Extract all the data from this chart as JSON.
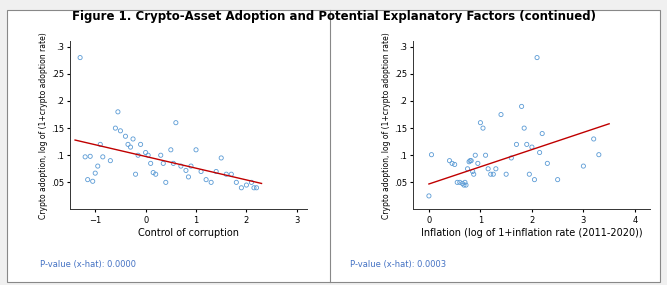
{
  "title": "Figure 1. Crypto-Asset Adoption and Potential Explanatory Factors (continued)",
  "title_fontsize": 8.5,
  "title_fontweight": "bold",
  "background_color": "#f0f0f0",
  "panel_bg": "#ffffff",
  "scatter_color": "#5b9bd5",
  "line_color": "#c00000",
  "marker_size": 9,
  "marker_linewidth": 0.6,
  "ylabel": "Crypto adoption, log of (1+crypto adoption rate)",
  "ylabel_fontsize": 5.5,
  "tick_fontsize": 6,
  "outer_border_color": "#888888",
  "plot1": {
    "xlabel": "Control of corruption",
    "xlabel_fontsize": 7,
    "pvalue_text": "P-value (x-hat): 0.0000",
    "pvalue_fontsize": 6,
    "pvalue_color": "#4472c4",
    "xlim": [
      -1.5,
      3.2
    ],
    "ylim": [
      0.0,
      0.31
    ],
    "xticks": [
      -1,
      0,
      1,
      2,
      3
    ],
    "yticks": [
      0.05,
      0.1,
      0.15,
      0.2,
      0.25,
      0.3
    ],
    "ytick_labels": [
      ".05",
      ".1",
      ".15",
      ".2",
      ".25",
      ".3"
    ],
    "line_x": [
      -1.4,
      2.3
    ],
    "line_y": [
      0.128,
      0.048
    ],
    "scatter_x": [
      -1.3,
      -1.2,
      -1.15,
      -1.1,
      -1.05,
      -1.0,
      -0.95,
      -0.9,
      -0.85,
      -0.7,
      -0.6,
      -0.55,
      -0.5,
      -0.4,
      -0.35,
      -0.3,
      -0.25,
      -0.2,
      -0.15,
      -0.1,
      0.0,
      0.05,
      0.1,
      0.15,
      0.2,
      0.3,
      0.35,
      0.4,
      0.5,
      0.55,
      0.6,
      0.7,
      0.8,
      0.85,
      0.9,
      1.0,
      1.1,
      1.2,
      1.3,
      1.4,
      1.5,
      1.6,
      1.7,
      1.8,
      1.9,
      2.0,
      2.1,
      2.15,
      2.2
    ],
    "scatter_y": [
      0.28,
      0.097,
      0.055,
      0.098,
      0.052,
      0.067,
      0.08,
      0.12,
      0.097,
      0.09,
      0.15,
      0.18,
      0.145,
      0.135,
      0.12,
      0.115,
      0.13,
      0.065,
      0.1,
      0.12,
      0.105,
      0.1,
      0.085,
      0.068,
      0.065,
      0.1,
      0.085,
      0.05,
      0.11,
      0.085,
      0.16,
      0.08,
      0.072,
      0.06,
      0.08,
      0.11,
      0.07,
      0.055,
      0.05,
      0.07,
      0.095,
      0.065,
      0.065,
      0.05,
      0.04,
      0.045,
      0.05,
      0.04,
      0.04
    ]
  },
  "plot2": {
    "xlabel": "Inflation (log of 1+inflation rate (2011-2020))",
    "xlabel_fontsize": 7,
    "pvalue_text": "P-value (x-hat): 0.0003",
    "pvalue_fontsize": 6,
    "pvalue_color": "#4472c4",
    "xlim": [
      -0.3,
      4.3
    ],
    "ylim": [
      0.0,
      0.31
    ],
    "xticks": [
      0,
      1,
      2,
      3,
      4
    ],
    "yticks": [
      0.05,
      0.1,
      0.15,
      0.2,
      0.25,
      0.3
    ],
    "ytick_labels": [
      ".05",
      ".1",
      ".15",
      ".2",
      ".25",
      ".3"
    ],
    "line_x": [
      0.0,
      3.5
    ],
    "line_y": [
      0.047,
      0.158
    ],
    "scatter_x": [
      0.0,
      0.05,
      0.4,
      0.45,
      0.5,
      0.55,
      0.6,
      0.65,
      0.68,
      0.7,
      0.72,
      0.75,
      0.78,
      0.8,
      0.82,
      0.85,
      0.87,
      0.9,
      0.95,
      1.0,
      1.05,
      1.1,
      1.15,
      1.2,
      1.25,
      1.3,
      1.4,
      1.5,
      1.6,
      1.7,
      1.8,
      1.85,
      1.9,
      1.95,
      2.0,
      2.05,
      2.1,
      2.15,
      2.2,
      2.3,
      2.5,
      3.0,
      3.2,
      3.3
    ],
    "scatter_y": [
      0.025,
      0.101,
      0.09,
      0.085,
      0.083,
      0.05,
      0.05,
      0.048,
      0.045,
      0.05,
      0.045,
      0.075,
      0.088,
      0.09,
      0.09,
      0.07,
      0.065,
      0.1,
      0.085,
      0.16,
      0.15,
      0.1,
      0.075,
      0.065,
      0.065,
      0.075,
      0.175,
      0.065,
      0.095,
      0.12,
      0.19,
      0.15,
      0.12,
      0.065,
      0.115,
      0.055,
      0.28,
      0.105,
      0.14,
      0.085,
      0.055,
      0.08,
      0.13,
      0.101
    ]
  }
}
